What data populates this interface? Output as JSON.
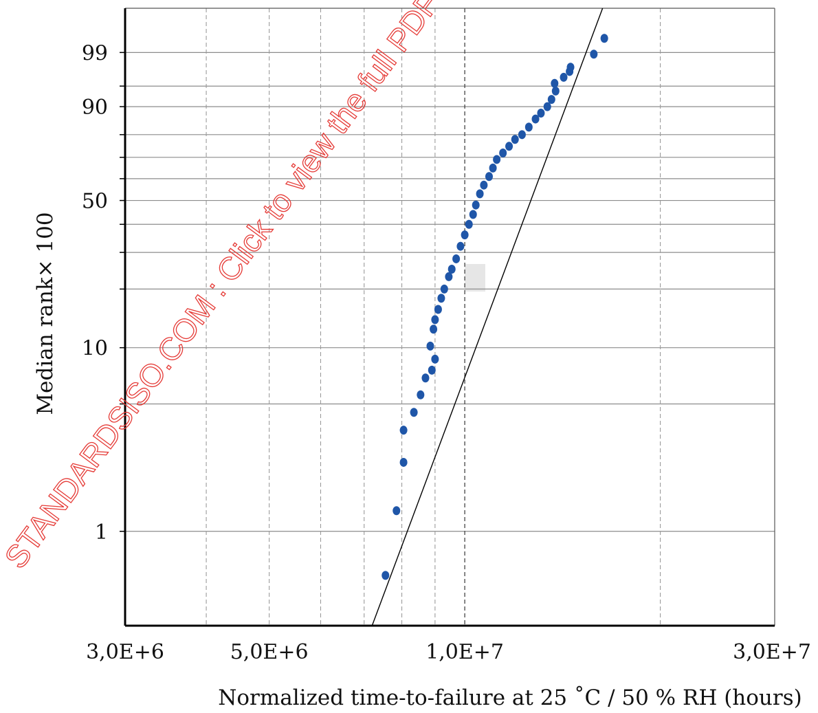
{
  "chart_data": {
    "type": "scatter",
    "title": "",
    "xlabel": "Normalized time-to-failure at 25 ˚C / 50 % RH  (hours)",
    "ylabel": "Median rank× 100",
    "x_scale": "log",
    "y_scale": "weibull",
    "xlim": [
      3000000,
      30000000
    ],
    "ylim": [
      0.3,
      99.97
    ],
    "x_ticks": [
      3000000,
      5000000,
      10000000,
      30000000
    ],
    "x_tick_labels": [
      "3,0E+6",
      "5,0E+6",
      "1,0E+7",
      "3,0E+7"
    ],
    "y_ticks": [
      1,
      10,
      50,
      90,
      99
    ],
    "y_tick_labels": [
      "1",
      "10",
      "50",
      "90",
      "99"
    ],
    "x_gridlines": [
      4000000,
      5000000,
      6000000,
      7000000,
      8000000,
      9000000,
      10000000,
      20000000
    ],
    "y_gridlines": [
      1,
      5,
      10,
      20,
      30,
      40,
      50,
      60,
      70,
      80,
      90,
      95,
      99
    ],
    "grid": true,
    "series": [
      {
        "type": "points",
        "color": "#1f56a8",
        "points": [
          [
            7550000,
            0.57
          ],
          [
            7850000,
            1.3
          ],
          [
            8050000,
            2.4
          ],
          [
            8050000,
            3.6
          ],
          [
            8350000,
            4.5
          ],
          [
            8550000,
            5.6
          ],
          [
            8700000,
            6.9
          ],
          [
            8900000,
            7.6
          ],
          [
            9000000,
            8.7
          ],
          [
            8850000,
            10.2
          ],
          [
            8950000,
            12.5
          ],
          [
            9000000,
            14
          ],
          [
            9100000,
            15.8
          ],
          [
            9200000,
            18
          ],
          [
            9300000,
            20
          ],
          [
            9450000,
            23
          ],
          [
            9550000,
            25
          ],
          [
            9700000,
            28
          ],
          [
            9850000,
            32
          ],
          [
            10000000,
            36
          ],
          [
            10150000,
            40
          ],
          [
            10300000,
            44
          ],
          [
            10400000,
            48
          ],
          [
            10550000,
            53
          ],
          [
            10700000,
            57
          ],
          [
            10900000,
            61
          ],
          [
            11050000,
            65
          ],
          [
            11200000,
            69
          ],
          [
            11450000,
            72
          ],
          [
            11700000,
            75
          ],
          [
            11950000,
            78
          ],
          [
            12250000,
            80
          ],
          [
            12550000,
            83
          ],
          [
            12850000,
            86
          ],
          [
            13100000,
            88
          ],
          [
            13400000,
            90
          ],
          [
            13600000,
            92
          ],
          [
            13800000,
            94
          ],
          [
            13750000,
            95.5
          ],
          [
            14200000,
            96.5
          ],
          [
            14550000,
            97.8
          ],
          [
            14500000,
            97.3
          ],
          [
            15800000,
            98.9
          ],
          [
            16400000,
            99.6
          ]
        ]
      },
      {
        "type": "fit-line",
        "color": "#000000",
        "points": [
          [
            7200000,
            0.3
          ],
          [
            16300000,
            99.97
          ]
        ]
      }
    ],
    "annotations": [
      "STANDARDSISO.COM : Click to view the full PDF of IS"
    ]
  }
}
